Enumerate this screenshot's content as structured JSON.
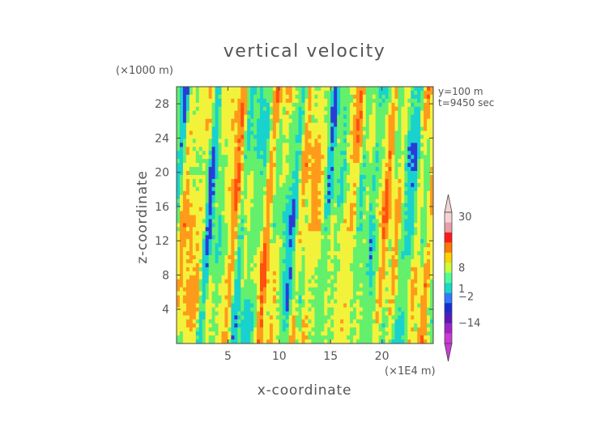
{
  "chart_data": {
    "type": "heatmap",
    "title": "vertical velocity",
    "xlabel": "x-coordinate",
    "ylabel": "z-coordinate",
    "x_units": "(×1E4 m)",
    "y_units": "(×1000 m)",
    "annotations": [
      "y=100 m",
      "t=9450 sec"
    ],
    "xlim": [
      0,
      25
    ],
    "ylim": [
      0,
      30
    ],
    "x_ticks": [
      5,
      10,
      15,
      20
    ],
    "y_ticks": [
      4,
      8,
      12,
      16,
      20,
      24,
      28
    ],
    "colorbar": {
      "labels": [
        "30",
        "8",
        "1",
        "−2",
        "−14"
      ],
      "label_values": [
        30,
        8,
        1,
        -2,
        -14
      ],
      "colors": [
        "#f3d3d3",
        "#e8a0a8",
        "#ff1a1a",
        "#ff7a00",
        "#ffd200",
        "#c8ff3a",
        "#4cff9a",
        "#18d9c8",
        "#2f7bff",
        "#1a2bd6",
        "#5a19b8",
        "#a023c8",
        "#c93ad6"
      ]
    },
    "field_note_colors": {
      "blue": "#2a3cd8",
      "cyan": "#19d2ce",
      "green": "#63f06c",
      "yellow": "#f3f23a",
      "orange": "#ff9b1a",
      "red": "#ff5010"
    }
  }
}
